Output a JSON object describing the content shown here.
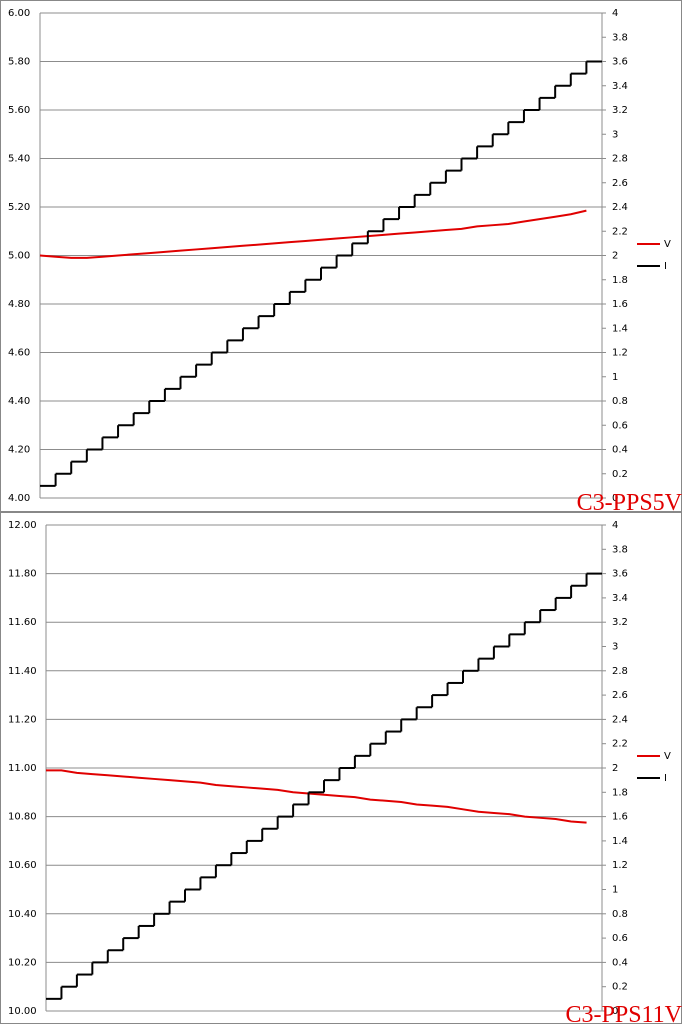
{
  "chart_data": [
    {
      "type": "line",
      "step": true,
      "title": "C3-PPS5V",
      "x": [
        0,
        1,
        2,
        3,
        4,
        5,
        6,
        7,
        8,
        9,
        10,
        11,
        12,
        13,
        14,
        15,
        16,
        17,
        18,
        19,
        20,
        21,
        22,
        23,
        24,
        25,
        26,
        27,
        28,
        29,
        30,
        31,
        32,
        33,
        34,
        35
      ],
      "xlim": [
        0,
        36
      ],
      "ylim": [
        4,
        6
      ],
      "yticks": [
        {
          "value": 4,
          "label": "4.00"
        },
        {
          "value": 4.2,
          "label": "4.20"
        },
        {
          "value": 4.4,
          "label": "4.40"
        },
        {
          "value": 4.6,
          "label": "4.60"
        },
        {
          "value": 4.8,
          "label": "4.80"
        },
        {
          "value": 5,
          "label": "5.00"
        },
        {
          "value": 5.2,
          "label": "5.20"
        },
        {
          "value": 5.4,
          "label": "5.40"
        },
        {
          "value": 5.6,
          "label": "5.60"
        },
        {
          "value": 5.8,
          "label": "5.80"
        },
        {
          "value": 6,
          "label": "6.00"
        }
      ],
      "y2lim": [
        0,
        4
      ],
      "y2ticks": [
        0,
        0.2,
        0.4,
        0.6,
        0.8,
        1,
        1.2,
        1.4,
        1.6,
        1.8,
        2,
        2.2,
        2.4,
        2.6,
        2.8,
        3,
        3.2,
        3.4,
        3.6,
        3.8,
        4
      ],
      "grid": true,
      "legend": "right",
      "series": [
        {
          "name": "V",
          "color": "#e00000",
          "values": [
            5.0,
            4.995,
            4.99,
            4.99,
            4.995,
            5.0,
            5.005,
            5.01,
            5.015,
            5.02,
            5.025,
            5.03,
            5.035,
            5.04,
            5.045,
            5.05,
            5.055,
            5.06,
            5.065,
            5.07,
            5.075,
            5.08,
            5.085,
            5.09,
            5.095,
            5.1,
            5.105,
            5.11,
            5.12,
            5.125,
            5.13,
            5.14,
            5.15,
            5.16,
            5.17,
            5.185
          ]
        },
        {
          "name": "I",
          "color": "#000000",
          "axis": "y2",
          "values": [
            0.1,
            0.2,
            0.3,
            0.4,
            0.5,
            0.6,
            0.7,
            0.8,
            0.9,
            1.0,
            1.1,
            1.2,
            1.3,
            1.4,
            1.5,
            1.6,
            1.7,
            1.8,
            1.9,
            2.0,
            2.1,
            2.2,
            2.3,
            2.4,
            2.5,
            2.6,
            2.7,
            2.8,
            2.9,
            3.0,
            3.1,
            3.2,
            3.3,
            3.4,
            3.5,
            3.6
          ]
        }
      ]
    },
    {
      "type": "line",
      "step": true,
      "title": "C3-PPS11V",
      "x": [
        0,
        1,
        2,
        3,
        4,
        5,
        6,
        7,
        8,
        9,
        10,
        11,
        12,
        13,
        14,
        15,
        16,
        17,
        18,
        19,
        20,
        21,
        22,
        23,
        24,
        25,
        26,
        27,
        28,
        29,
        30,
        31,
        32,
        33,
        34,
        35
      ],
      "xlim": [
        0,
        36
      ],
      "ylim": [
        10,
        12
      ],
      "yticks": [
        {
          "value": 10,
          "label": "10.00"
        },
        {
          "value": 10.2,
          "label": "10.20"
        },
        {
          "value": 10.4,
          "label": "10.40"
        },
        {
          "value": 10.6,
          "label": "10.60"
        },
        {
          "value": 10.8,
          "label": "10.80"
        },
        {
          "value": 11,
          "label": "11.00"
        },
        {
          "value": 11.2,
          "label": "11.20"
        },
        {
          "value": 11.4,
          "label": "11.40"
        },
        {
          "value": 11.6,
          "label": "11.60"
        },
        {
          "value": 11.8,
          "label": "11.80"
        },
        {
          "value": 12,
          "label": "12.00"
        }
      ],
      "y2lim": [
        0,
        4
      ],
      "y2ticks": [
        0,
        0.2,
        0.4,
        0.6,
        0.8,
        1,
        1.2,
        1.4,
        1.6,
        1.8,
        2,
        2.2,
        2.4,
        2.6,
        2.8,
        3,
        3.2,
        3.4,
        3.6,
        3.8,
        4
      ],
      "grid": true,
      "legend": "right",
      "series": [
        {
          "name": "V",
          "color": "#e00000",
          "values": [
            10.99,
            10.99,
            10.98,
            10.975,
            10.97,
            10.965,
            10.96,
            10.955,
            10.95,
            10.945,
            10.94,
            10.93,
            10.925,
            10.92,
            10.915,
            10.91,
            10.9,
            10.895,
            10.89,
            10.885,
            10.88,
            10.87,
            10.865,
            10.86,
            10.85,
            10.845,
            10.84,
            10.83,
            10.82,
            10.815,
            10.81,
            10.8,
            10.795,
            10.79,
            10.78,
            10.775
          ]
        },
        {
          "name": "I",
          "color": "#000000",
          "axis": "y2",
          "values": [
            0.1,
            0.2,
            0.3,
            0.4,
            0.5,
            0.6,
            0.7,
            0.8,
            0.9,
            1.0,
            1.1,
            1.2,
            1.3,
            1.4,
            1.5,
            1.6,
            1.7,
            1.8,
            1.9,
            2.0,
            2.1,
            2.2,
            2.3,
            2.4,
            2.5,
            2.6,
            2.7,
            2.8,
            2.9,
            3.0,
            3.1,
            3.2,
            3.3,
            3.4,
            3.5,
            3.6
          ]
        }
      ]
    }
  ]
}
